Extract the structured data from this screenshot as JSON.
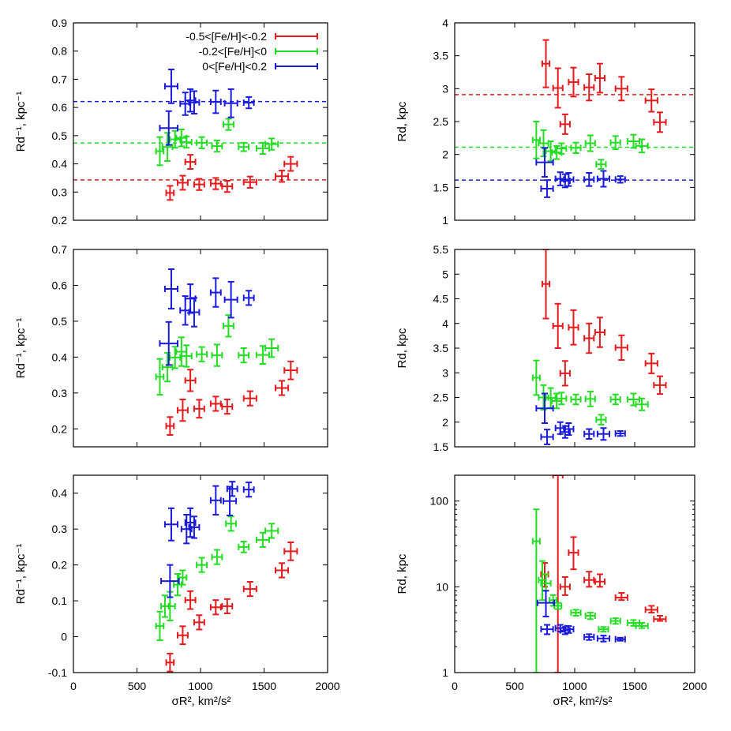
{
  "figure": {
    "legend": [
      {
        "label": "-0.5<[Fe/H]<-0.2",
        "color": "#e41a1c"
      },
      {
        "label": "-0.2<[Fe/H]<0",
        "color": "#22dd22"
      },
      {
        "label": "0<[Fe/H]<0.2",
        "color": "#1a1add"
      }
    ],
    "shared_xlabel": "σR², km²/s²",
    "xlim": [
      0,
      2000
    ],
    "xticks": [
      0,
      500,
      1000,
      1500,
      2000
    ]
  },
  "chart_data": [
    {
      "type": "scatter",
      "ylabel": "Rd⁻¹, kpc⁻¹",
      "ylim": [
        0.2,
        0.9
      ],
      "yticks": [
        0.2,
        0.3,
        0.4,
        0.5,
        0.6,
        0.7,
        0.8,
        0.9
      ],
      "legend_position": "top",
      "series": [
        {
          "color": "#e41a1c",
          "hline": 0.343,
          "x": [
            760,
            860,
            920,
            990,
            1120,
            1210,
            1390,
            1640,
            1710
          ],
          "y": [
            0.297,
            0.333,
            0.407,
            0.327,
            0.33,
            0.32,
            0.335,
            0.356,
            0.4
          ],
          "xerr": [
            30,
            40,
            40,
            40,
            40,
            40,
            50,
            50,
            50
          ],
          "yerr": [
            0.025,
            0.025,
            0.025,
            0.02,
            0.02,
            0.02,
            0.02,
            0.02,
            0.025
          ]
        },
        {
          "color": "#22dd22",
          "hline": 0.474,
          "x": [
            680,
            740,
            800,
            850,
            890,
            1010,
            1130,
            1220,
            1340,
            1490,
            1560
          ],
          "y": [
            0.445,
            0.46,
            0.487,
            0.492,
            0.477,
            0.475,
            0.463,
            0.54,
            0.46,
            0.455,
            0.47
          ],
          "xerr": [
            30,
            40,
            40,
            40,
            40,
            40,
            40,
            40,
            40,
            50,
            50
          ],
          "yerr": [
            0.05,
            0.05,
            0.03,
            0.03,
            0.02,
            0.02,
            0.02,
            0.02,
            0.015,
            0.02,
            0.02
          ],
          "hbar": [
            false,
            false,
            false,
            false,
            false,
            false,
            false,
            false,
            false,
            false,
            false
          ]
        },
        {
          "color": "#1a1add",
          "hline": 0.621,
          "x": [
            750,
            770,
            880,
            920,
            950,
            1120,
            1240,
            1380
          ],
          "y": [
            0.527,
            0.675,
            0.613,
            0.625,
            0.618,
            0.62,
            0.615,
            0.617
          ],
          "xerr": [
            70,
            50,
            40,
            40,
            40,
            40,
            50,
            40
          ],
          "yerr": [
            0.06,
            0.06,
            0.04,
            0.04,
            0.04,
            0.04,
            0.05,
            0.02
          ]
        }
      ]
    },
    {
      "type": "scatter",
      "ylabel": "Rd, kpc",
      "ylim": [
        1,
        4
      ],
      "yticks": [
        1,
        1.5,
        2,
        2.5,
        3,
        3.5,
        4
      ],
      "series": [
        {
          "color": "#e41a1c",
          "hline": 2.91,
          "x": [
            760,
            860,
            920,
            990,
            1120,
            1210,
            1390,
            1640,
            1710
          ],
          "y": [
            3.38,
            3.01,
            2.46,
            3.1,
            3.02,
            3.16,
            3.0,
            2.82,
            2.49
          ],
          "xerr": [
            30,
            40,
            40,
            40,
            40,
            40,
            50,
            50,
            50
          ],
          "yerr": [
            0.36,
            0.3,
            0.15,
            0.22,
            0.2,
            0.22,
            0.18,
            0.17,
            0.15
          ]
        },
        {
          "color": "#22dd22",
          "hline": 2.11,
          "x": [
            680,
            740,
            800,
            850,
            890,
            1010,
            1130,
            1220,
            1340,
            1490,
            1560
          ],
          "y": [
            2.22,
            2.17,
            2.05,
            2.03,
            2.09,
            2.1,
            2.17,
            1.85,
            2.18,
            2.2,
            2.13
          ],
          "xerr": [
            30,
            40,
            40,
            40,
            40,
            40,
            40,
            40,
            40,
            50,
            50
          ],
          "yerr": [
            0.28,
            0.2,
            0.15,
            0.1,
            0.08,
            0.08,
            0.12,
            0.07,
            0.1,
            0.1,
            0.1
          ]
        },
        {
          "color": "#1a1add",
          "hline": 1.61,
          "x": [
            750,
            770,
            880,
            920,
            950,
            1120,
            1240,
            1380
          ],
          "y": [
            1.88,
            1.48,
            1.63,
            1.6,
            1.62,
            1.62,
            1.63,
            1.62
          ],
          "xerr": [
            70,
            50,
            40,
            40,
            40,
            40,
            50,
            40
          ],
          "yerr": [
            0.22,
            0.13,
            0.1,
            0.1,
            0.1,
            0.1,
            0.12,
            0.05
          ]
        }
      ]
    },
    {
      "type": "scatter",
      "ylabel": "Rd⁻¹, kpc⁻¹",
      "ylim": [
        0.15,
        0.7
      ],
      "yticks": [
        0.2,
        0.3,
        0.4,
        0.5,
        0.6,
        0.7
      ],
      "series": [
        {
          "color": "#e41a1c",
          "x": [
            760,
            860,
            920,
            990,
            1120,
            1210,
            1390,
            1640,
            1710
          ],
          "y": [
            0.208,
            0.252,
            0.335,
            0.256,
            0.27,
            0.262,
            0.285,
            0.314,
            0.363
          ],
          "xerr": [
            30,
            40,
            40,
            40,
            40,
            40,
            50,
            50,
            50
          ],
          "yerr": [
            0.025,
            0.03,
            0.03,
            0.025,
            0.02,
            0.02,
            0.02,
            0.02,
            0.025
          ]
        },
        {
          "color": "#22dd22",
          "x": [
            680,
            740,
            800,
            850,
            890,
            1010,
            1130,
            1220,
            1340,
            1490,
            1560
          ],
          "y": [
            0.345,
            0.372,
            0.399,
            0.415,
            0.403,
            0.408,
            0.405,
            0.487,
            0.405,
            0.406,
            0.425
          ],
          "xerr": [
            30,
            40,
            40,
            40,
            40,
            40,
            40,
            40,
            40,
            50,
            50
          ],
          "yerr": [
            0.05,
            0.04,
            0.03,
            0.04,
            0.03,
            0.02,
            0.03,
            0.03,
            0.02,
            0.025,
            0.025
          ]
        },
        {
          "color": "#1a1add",
          "x": [
            750,
            770,
            880,
            920,
            950,
            1120,
            1240,
            1380
          ],
          "y": [
            0.438,
            0.59,
            0.53,
            0.563,
            0.525,
            0.58,
            0.56,
            0.565
          ],
          "xerr": [
            70,
            50,
            40,
            40,
            40,
            40,
            50,
            40
          ],
          "yerr": [
            0.06,
            0.055,
            0.04,
            0.04,
            0.04,
            0.04,
            0.05,
            0.02
          ]
        }
      ]
    },
    {
      "type": "scatter",
      "ylabel": "Rd, kpc",
      "ylim": [
        1.5,
        5.5
      ],
      "yticks": [
        1.5,
        2,
        2.5,
        3,
        3.5,
        4,
        4.5,
        5,
        5.5
      ],
      "series": [
        {
          "color": "#e41a1c",
          "x": [
            760,
            860,
            920,
            990,
            1120,
            1210,
            1390,
            1640,
            1710
          ],
          "y": [
            4.8,
            3.95,
            2.99,
            3.92,
            3.7,
            3.82,
            3.51,
            3.19,
            2.75
          ],
          "xerr": [
            30,
            40,
            40,
            40,
            40,
            40,
            50,
            50,
            50
          ],
          "yerr": [
            0.7,
            0.45,
            0.25,
            0.35,
            0.3,
            0.3,
            0.25,
            0.2,
            0.18
          ]
        },
        {
          "color": "#22dd22",
          "x": [
            680,
            740,
            800,
            850,
            890,
            1010,
            1130,
            1220,
            1340,
            1490,
            1560
          ],
          "y": [
            2.9,
            2.5,
            2.49,
            2.43,
            2.48,
            2.46,
            2.47,
            2.05,
            2.46,
            2.46,
            2.36
          ],
          "xerr": [
            30,
            40,
            40,
            40,
            40,
            40,
            40,
            40,
            40,
            50,
            50
          ],
          "yerr": [
            0.35,
            0.25,
            0.2,
            0.15,
            0.12,
            0.1,
            0.15,
            0.1,
            0.1,
            0.12,
            0.12
          ]
        },
        {
          "color": "#1a1add",
          "x": [
            750,
            770,
            880,
            920,
            950,
            1120,
            1240,
            1380
          ],
          "y": [
            2.28,
            1.7,
            1.88,
            1.8,
            1.86,
            1.76,
            1.76,
            1.77
          ],
          "xerr": [
            70,
            50,
            40,
            40,
            40,
            40,
            50,
            40
          ],
          "yerr": [
            0.3,
            0.15,
            0.12,
            0.12,
            0.12,
            0.1,
            0.12,
            0.05
          ]
        }
      ]
    },
    {
      "type": "scatter",
      "ylabel": "Rd⁻¹, kpc⁻¹",
      "ylim": [
        -0.1,
        0.45
      ],
      "yticks": [
        -0.1,
        0,
        0.1,
        0.2,
        0.3,
        0.4
      ],
      "series": [
        {
          "color": "#e41a1c",
          "x": [
            760,
            860,
            920,
            990,
            1120,
            1210,
            1390,
            1640,
            1710
          ],
          "y": [
            -0.072,
            0.004,
            0.102,
            0.04,
            0.082,
            0.085,
            0.133,
            0.185,
            0.238
          ],
          "xerr": [
            30,
            40,
            40,
            40,
            40,
            40,
            50,
            50,
            50
          ],
          "yerr": [
            0.025,
            0.025,
            0.025,
            0.02,
            0.02,
            0.02,
            0.02,
            0.02,
            0.025
          ]
        },
        {
          "color": "#22dd22",
          "x": [
            680,
            720,
            760,
            820,
            860,
            1010,
            1130,
            1240,
            1340,
            1490,
            1560
          ],
          "y": [
            0.03,
            0.085,
            0.085,
            0.145,
            0.165,
            0.2,
            0.222,
            0.315,
            0.25,
            0.27,
            0.295
          ],
          "xerr": [
            30,
            30,
            40,
            30,
            30,
            40,
            40,
            40,
            40,
            50,
            50
          ],
          "yerr": [
            0.04,
            0.03,
            0.04,
            0.03,
            0.02,
            0.02,
            0.02,
            0.02,
            0.015,
            0.02,
            0.02
          ]
        },
        {
          "color": "#1a1add",
          "x": [
            760,
            770,
            890,
            920,
            950,
            1120,
            1230,
            1250,
            1380
          ],
          "y": [
            0.155,
            0.313,
            0.3,
            0.318,
            0.305,
            0.38,
            0.378,
            0.412,
            0.41
          ],
          "xerr": [
            70,
            50,
            40,
            40,
            40,
            40,
            50,
            40,
            40
          ],
          "yerr": [
            0.045,
            0.045,
            0.04,
            0.04,
            0.03,
            0.04,
            0.04,
            0.02,
            0.02
          ]
        }
      ]
    },
    {
      "type": "scatter",
      "ylabel": "Rd, kpc",
      "yscale": "log",
      "ylim": [
        1,
        200
      ],
      "yticks": [
        1,
        10,
        100
      ],
      "series": [
        {
          "color": "#e41a1c",
          "x": [
            750,
            860,
            920,
            990,
            1120,
            1210,
            1390,
            1640,
            1710
          ],
          "y": [
            14,
            200,
            10,
            25,
            12,
            11.5,
            7.5,
            5.4,
            4.2
          ],
          "xerr": [
            30,
            40,
            40,
            40,
            40,
            40,
            50,
            50,
            50
          ],
          "ylo": [
            10,
            1,
            8,
            16,
            10,
            10,
            7,
            5,
            4
          ],
          "yhi": [
            19,
            300,
            13,
            38,
            15,
            14,
            8.5,
            6,
            4.6
          ]
        },
        {
          "color": "#22dd22",
          "x": [
            680,
            730,
            760,
            820,
            860,
            1010,
            1130,
            1240,
            1340,
            1490,
            1560
          ],
          "y": [
            34,
            12,
            11,
            7,
            6,
            5,
            4.6,
            3.2,
            4,
            3.8,
            3.5
          ],
          "xerr": [
            30,
            30,
            40,
            30,
            30,
            40,
            40,
            40,
            40,
            50,
            50
          ],
          "ylo": [
            1,
            7,
            9,
            6,
            5.5,
            4.6,
            4.2,
            3,
            3.7,
            3.5,
            3.3
          ],
          "yhi": [
            80,
            20,
            14,
            8,
            6.5,
            5.4,
            5,
            3.4,
            4.3,
            4.1,
            3.8
          ]
        },
        {
          "color": "#1a1add",
          "x": [
            760,
            770,
            880,
            920,
            950,
            1120,
            1240,
            1380
          ],
          "y": [
            6.5,
            3.2,
            3.3,
            3.1,
            3.2,
            2.6,
            2.5,
            2.45
          ],
          "xerr": [
            70,
            50,
            40,
            40,
            40,
            40,
            50,
            40
          ],
          "ylo": [
            4.5,
            2.8,
            3,
            2.8,
            2.9,
            2.4,
            2.3,
            2.35
          ],
          "yhi": [
            9,
            3.6,
            3.6,
            3.4,
            3.5,
            2.8,
            2.7,
            2.55
          ]
        }
      ]
    }
  ]
}
